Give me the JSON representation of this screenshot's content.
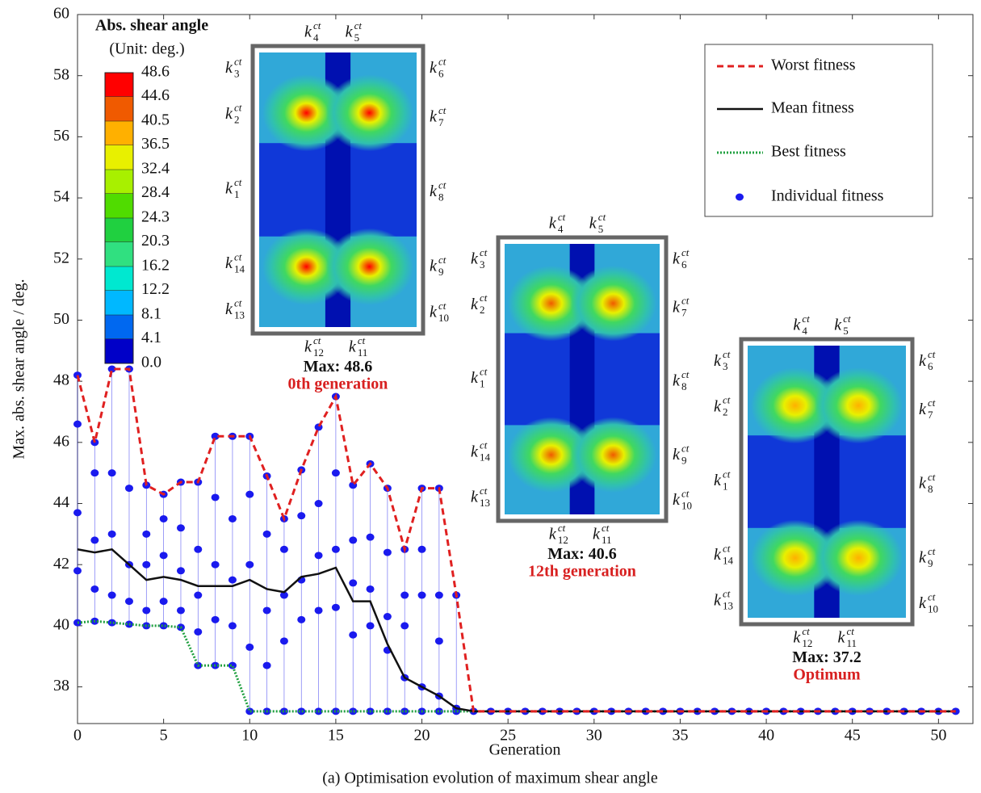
{
  "chart_data": {
    "type": "line",
    "y_label": "Max. abs. shear angle / deg.",
    "x_label": "Generation",
    "caption": "(a) Optimisation evolution of maximum shear angle",
    "xlim": [
      0,
      52
    ],
    "ylim": [
      36.8,
      60
    ],
    "xticks": [
      0,
      5,
      10,
      15,
      20,
      25,
      30,
      35,
      40,
      45,
      50
    ],
    "yticks": [
      38,
      40,
      42,
      44,
      46,
      48,
      50,
      52,
      54,
      56,
      58,
      60
    ],
    "x": [
      0,
      1,
      2,
      3,
      4,
      5,
      6,
      7,
      8,
      9,
      10,
      11,
      12,
      13,
      14,
      15,
      16,
      17,
      18,
      19,
      20,
      21,
      22,
      23,
      24,
      25,
      26,
      27,
      28,
      29,
      30,
      31,
      32,
      33,
      34,
      35,
      36,
      37,
      38,
      39,
      40,
      41,
      42,
      43,
      44,
      45,
      46,
      47,
      48,
      49,
      50,
      51
    ],
    "series": [
      {
        "name": "Worst fitness",
        "color": "#e02020",
        "dash": "dashed",
        "values": [
          48.2,
          46.0,
          48.4,
          48.4,
          44.6,
          44.3,
          44.7,
          44.7,
          46.2,
          46.2,
          46.2,
          44.9,
          43.5,
          45.1,
          46.5,
          47.5,
          44.6,
          45.3,
          44.5,
          42.5,
          44.5,
          44.5,
          41.0,
          37.2,
          37.2,
          37.2,
          37.2,
          37.2,
          37.2,
          37.2,
          37.2,
          37.2,
          37.2,
          37.2,
          37.2,
          37.2,
          37.2,
          37.2,
          37.2,
          37.2,
          37.2,
          37.2,
          37.2,
          37.2,
          37.2,
          37.2,
          37.2,
          37.2,
          37.2,
          37.2,
          37.2,
          37.2
        ]
      },
      {
        "name": "Mean fitness",
        "color": "#111111",
        "dash": "solid",
        "values": [
          42.5,
          42.4,
          42.5,
          42.0,
          41.5,
          41.6,
          41.5,
          41.3,
          41.3,
          41.3,
          41.5,
          41.2,
          41.1,
          41.6,
          41.7,
          41.9,
          40.8,
          40.8,
          39.4,
          38.3,
          38.0,
          37.7,
          37.3,
          37.2,
          37.2,
          37.2,
          37.2,
          37.2,
          37.2,
          37.2,
          37.2,
          37.2,
          37.2,
          37.2,
          37.2,
          37.2,
          37.2,
          37.2,
          37.2,
          37.2,
          37.2,
          37.2,
          37.2,
          37.2,
          37.2,
          37.2,
          37.2,
          37.2,
          37.2,
          37.2,
          37.2,
          37.2
        ]
      },
      {
        "name": "Best fitness",
        "color": "#20a040",
        "dash": "dotted",
        "values": [
          40.1,
          40.15,
          40.1,
          40.05,
          40.0,
          40.0,
          39.95,
          38.7,
          38.7,
          38.7,
          37.2,
          37.2,
          37.2,
          37.2,
          37.2,
          37.2,
          37.2,
          37.2,
          37.2,
          37.2,
          37.2,
          37.2,
          37.2,
          37.2,
          37.2,
          37.2,
          37.2,
          37.2,
          37.2,
          37.2,
          37.2,
          37.2,
          37.2,
          37.2,
          37.2,
          37.2,
          37.2,
          37.2,
          37.2,
          37.2,
          37.2,
          37.2,
          37.2,
          37.2,
          37.2,
          37.2,
          37.2,
          37.2,
          37.2,
          37.2,
          37.2,
          37.2
        ]
      }
    ],
    "individuals": {
      "name": "Individual fitness",
      "color": "#1a1aee",
      "x": [
        0,
        0,
        0,
        0,
        0,
        1,
        1,
        1,
        1,
        1,
        2,
        2,
        2,
        2,
        2,
        3,
        3,
        3,
        3,
        3,
        4,
        4,
        4,
        4,
        4,
        5,
        5,
        5,
        5,
        5,
        6,
        6,
        6,
        6,
        6,
        7,
        7,
        7,
        7,
        7,
        8,
        8,
        8,
        8,
        8,
        9,
        9,
        9,
        9,
        9,
        10,
        10,
        10,
        10,
        10,
        11,
        11,
        11,
        11,
        11,
        12,
        12,
        12,
        12,
        12,
        13,
        13,
        13,
        13,
        13,
        14,
        14,
        14,
        14,
        14,
        15,
        15,
        15,
        15,
        15,
        16,
        16,
        16,
        16,
        16,
        17,
        17,
        17,
        17,
        17,
        18,
        18,
        18,
        18,
        18,
        19,
        19,
        19,
        19,
        19,
        20,
        20,
        20,
        20,
        20,
        21,
        21,
        21,
        21,
        21,
        22,
        22,
        22,
        23,
        24,
        25,
        26,
        27,
        28,
        29,
        30,
        31,
        32,
        33,
        34,
        35,
        36,
        37,
        38,
        39,
        40,
        41,
        42,
        43,
        44,
        45,
        46,
        47,
        48,
        49,
        50,
        51
      ],
      "y": [
        48.2,
        46.6,
        43.7,
        41.8,
        40.1,
        46.0,
        45.0,
        42.8,
        41.2,
        40.15,
        48.4,
        45.0,
        43.0,
        41.0,
        40.1,
        48.4,
        44.5,
        42.0,
        40.8,
        40.05,
        44.6,
        43.0,
        42.0,
        40.5,
        40.0,
        44.3,
        43.5,
        42.3,
        40.8,
        40.0,
        44.7,
        43.2,
        41.8,
        40.5,
        39.95,
        44.7,
        42.5,
        41.0,
        39.8,
        38.7,
        46.2,
        44.2,
        42.0,
        40.2,
        38.7,
        46.2,
        43.5,
        41.5,
        40.0,
        38.7,
        46.2,
        44.3,
        42.0,
        39.3,
        37.2,
        44.9,
        43.0,
        40.5,
        38.7,
        37.2,
        43.5,
        42.5,
        41.0,
        39.5,
        37.2,
        45.1,
        43.6,
        41.5,
        40.2,
        37.2,
        46.5,
        44.0,
        42.3,
        40.5,
        37.2,
        47.5,
        45.0,
        42.5,
        40.6,
        37.2,
        44.6,
        42.8,
        41.4,
        39.7,
        37.2,
        45.3,
        42.9,
        41.2,
        40.0,
        37.2,
        44.5,
        42.4,
        40.3,
        39.2,
        37.2,
        42.5,
        41.0,
        40.0,
        38.3,
        37.2,
        44.5,
        42.5,
        41.0,
        38.0,
        37.2,
        44.5,
        41.0,
        39.5,
        37.7,
        37.2,
        41.0,
        37.3,
        37.2,
        37.2,
        37.2,
        37.2,
        37.2,
        37.2,
        37.2,
        37.2,
        37.2,
        37.2,
        37.2,
        37.2,
        37.2,
        37.2,
        37.2,
        37.2,
        37.2,
        37.2,
        37.2,
        37.2,
        37.2,
        37.2,
        37.2,
        37.2,
        37.2,
        37.2,
        37.2,
        37.2,
        37.2,
        37.2
      ]
    },
    "colorbar": {
      "title": "Abs. shear angle",
      "subtitle": "(Unit: deg.)",
      "ticks": [
        48.6,
        44.6,
        40.5,
        36.5,
        32.4,
        28.4,
        24.3,
        20.3,
        16.2,
        12.2,
        8.1,
        4.1,
        {
          "value": 0,
          "label": "0.0"
        }
      ],
      "colors": [
        "#ff0000",
        "#f05a00",
        "#ffb000",
        "#e8f000",
        "#a8f000",
        "#50dc00",
        "#20d040",
        "#30e080",
        "#00e8d0",
        "#00b8ff",
        "#0068f0",
        "#0000c8"
      ]
    },
    "springs": {
      "symbol": "k",
      "superscript": "ct",
      "indices": [
        1,
        2,
        3,
        4,
        5,
        6,
        7,
        8,
        9,
        10,
        11,
        12,
        13,
        14
      ]
    },
    "insets": [
      {
        "max_prefix": "Max:",
        "max": 48.6,
        "label": "0th generation"
      },
      {
        "max_prefix": "Max:",
        "max": 40.6,
        "label": "12th generation"
      },
      {
        "max_prefix": "Max:",
        "max": 37.2,
        "label": "Optimum"
      }
    ]
  }
}
